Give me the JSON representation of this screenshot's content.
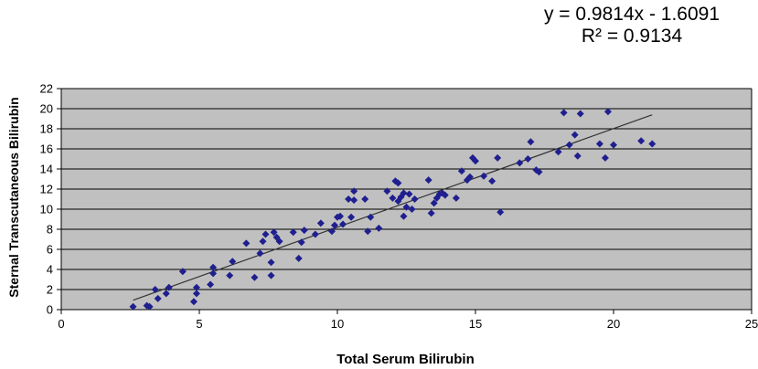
{
  "chart_data": {
    "type": "scatter",
    "title": "",
    "xlabel": "Total Serum Bilirubin",
    "ylabel": "Sternal Transcutaneous Bilirubin",
    "xlim": [
      0,
      25
    ],
    "ylim": [
      0,
      22
    ],
    "xticks": [
      "0",
      "5",
      "10",
      "15",
      "20",
      "25"
    ],
    "yticks": [
      "0",
      "2",
      "4",
      "6",
      "8",
      "10",
      "12",
      "14",
      "16",
      "18",
      "20",
      "22"
    ],
    "grid": true,
    "legend": "none",
    "plot_background": "#c0c0c0",
    "marker_color": "#1f1f8f",
    "annotations": [
      "y = 0.9814x - 1.6091",
      "R² = 0.9134"
    ],
    "trendline": {
      "slope": 0.9814,
      "intercept": -1.6091,
      "x_range": [
        2.6,
        21.4
      ]
    },
    "series": [
      {
        "x": [
          2.6,
          3.1,
          3.2,
          3.4,
          3.5,
          3.8,
          3.9,
          4.4,
          4.8,
          4.9,
          4.9,
          5.4,
          5.5,
          5.5,
          6.1,
          6.2,
          6.7,
          7.0,
          7.2,
          7.3,
          7.4,
          7.6,
          7.6,
          7.7,
          7.8,
          7.9,
          8.4,
          8.6,
          8.7,
          8.8,
          9.2,
          9.4,
          9.8,
          9.9,
          10.0,
          10.1,
          10.2,
          10.4,
          10.5,
          10.6,
          10.6,
          11.0,
          11.1,
          11.2,
          11.5,
          11.8,
          12.0,
          12.1,
          12.2,
          12.2,
          12.3,
          12.4,
          12.4,
          12.5,
          12.6,
          12.7,
          12.8,
          13.3,
          13.4,
          13.5,
          13.6,
          13.7,
          13.8,
          13.9,
          14.3,
          14.5,
          14.7,
          14.8,
          14.9,
          15.0,
          15.3,
          15.6,
          15.8,
          15.9,
          16.6,
          16.9,
          17.0,
          17.2,
          17.3,
          18.0,
          18.2,
          18.4,
          18.6,
          18.7,
          18.8,
          19.5,
          19.7,
          19.8,
          20.0,
          21.0,
          21.4
        ],
        "y": [
          0.3,
          0.4,
          0.3,
          2.0,
          1.1,
          1.6,
          2.2,
          3.8,
          0.8,
          1.6,
          2.2,
          2.5,
          3.6,
          4.2,
          3.4,
          4.8,
          6.6,
          3.2,
          5.6,
          6.8,
          7.5,
          3.4,
          4.7,
          7.7,
          7.2,
          6.8,
          7.7,
          5.1,
          6.7,
          7.9,
          7.5,
          8.6,
          7.8,
          8.4,
          9.2,
          9.3,
          8.5,
          11.0,
          9.2,
          11.8,
          10.9,
          11.0,
          7.8,
          9.2,
          8.1,
          11.8,
          11.1,
          12.8,
          10.8,
          12.6,
          11.2,
          9.3,
          11.6,
          10.2,
          11.5,
          10.0,
          11.0,
          12.9,
          9.6,
          10.6,
          11.1,
          11.5,
          11.6,
          11.4,
          11.1,
          13.8,
          12.9,
          13.2,
          15.1,
          14.8,
          13.3,
          12.8,
          15.1,
          9.7,
          14.6,
          15.0,
          16.7,
          13.9,
          13.7,
          15.7,
          19.6,
          16.4,
          17.4,
          15.3,
          19.5,
          16.5,
          15.1,
          19.7,
          16.4,
          16.8,
          16.5
        ]
      }
    ]
  }
}
